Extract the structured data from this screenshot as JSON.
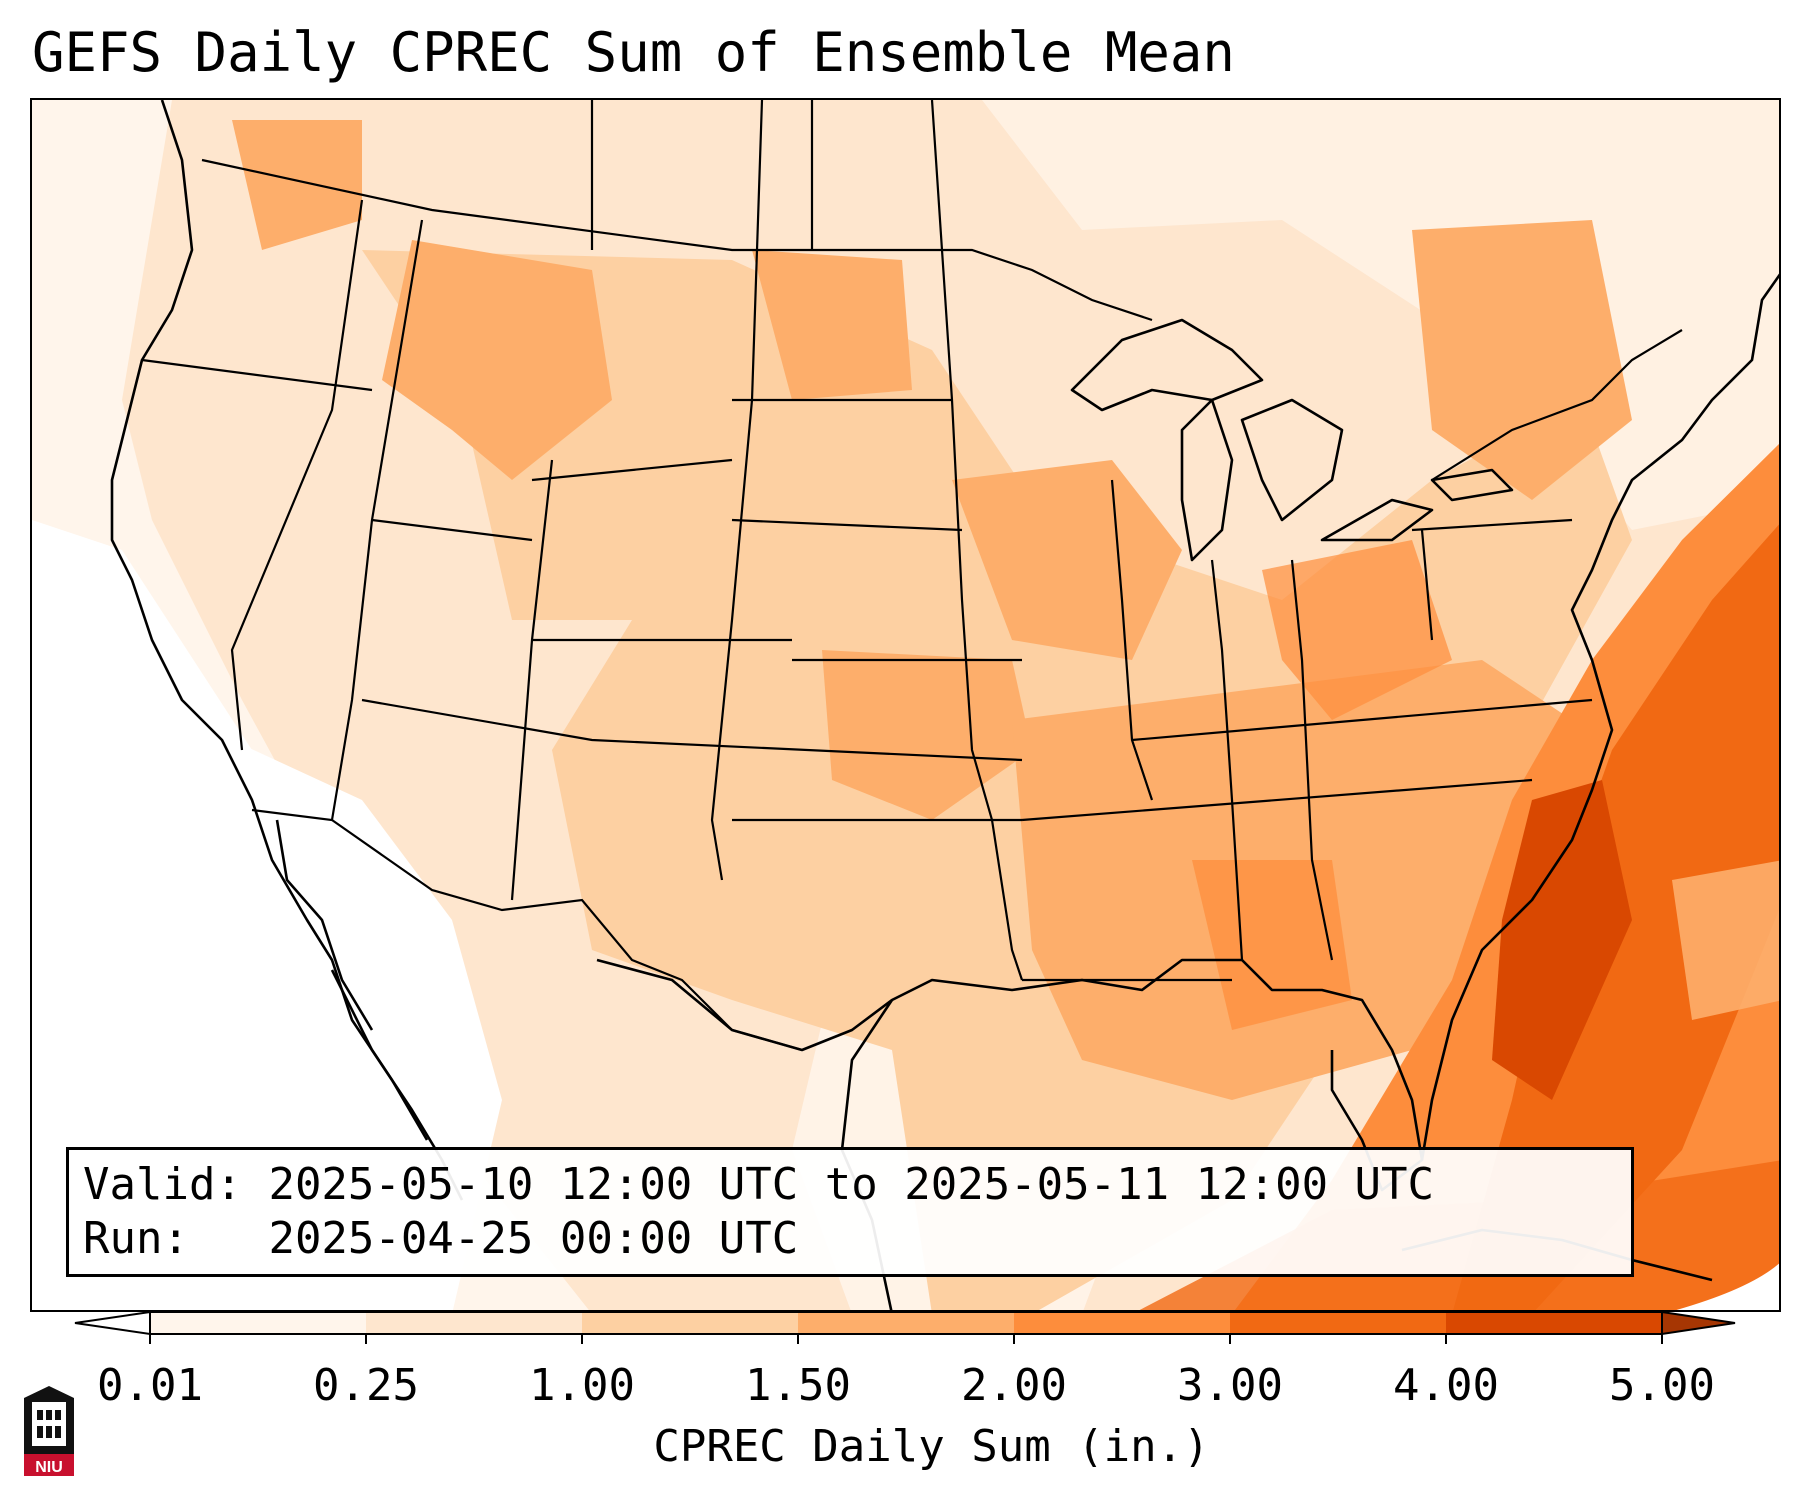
{
  "title": "GEFS Daily CPREC Sum of Ensemble Mean",
  "info": {
    "valid_label": "Valid:",
    "valid_value": "2025-05-10 12:00 UTC to 2025-05-11 12:00 UTC",
    "run_label": "Run:",
    "run_value": "2025-04-25 00:00 UTC"
  },
  "colorbar": {
    "label": "CPREC Daily Sum (in.)",
    "ticks": [
      "0.01",
      "0.25",
      "1.00",
      "1.50",
      "2.00",
      "3.00",
      "4.00",
      "5.00"
    ],
    "colors": [
      "#fff5eb",
      "#fee6ce",
      "#fdd0a2",
      "#fdae6b",
      "#fd8d3c",
      "#f16913",
      "#d94801"
    ],
    "under_color": "#ffffff",
    "over_color": "#a63603",
    "extend": "both"
  },
  "map": {
    "region": "CONUS",
    "field": "CPREC daily sum, ensemble mean",
    "land_outline_color": "#000000"
  },
  "logo": {
    "text": "NIU",
    "color": "#c8102e"
  }
}
